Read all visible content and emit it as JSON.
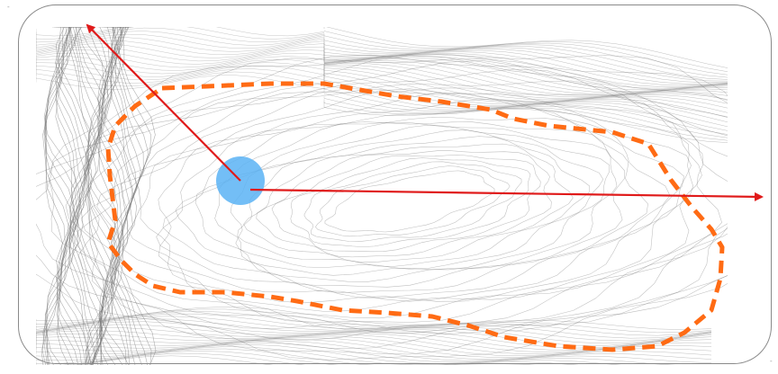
{
  "map": {
    "contour_color": "#6f6f6f",
    "boundary_color": "#ff6b14",
    "arrow_color": "#e01a1a",
    "marker_color": "#5bb3f5",
    "frame_color": "#8a8a8a",
    "corner_marks": [
      "-",
      "-"
    ]
  }
}
